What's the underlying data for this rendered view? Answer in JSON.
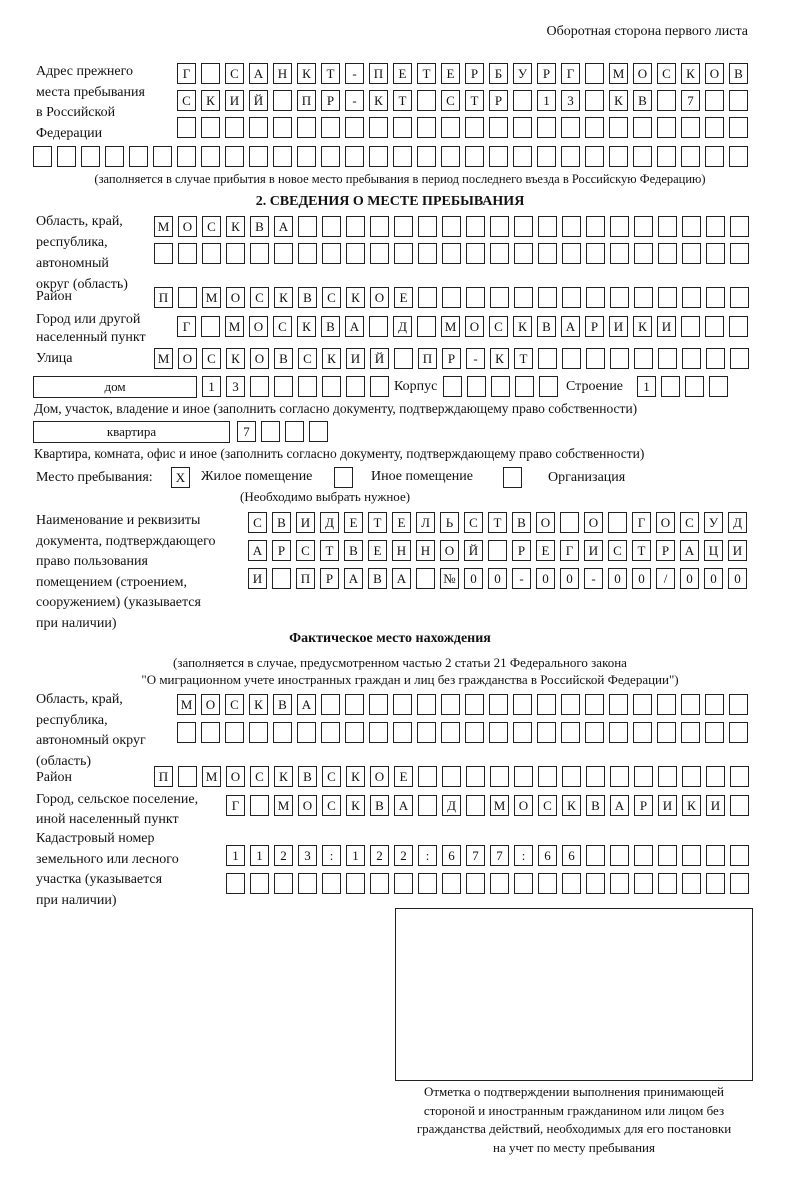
{
  "header": "Оборотная сторона первого листа",
  "prev_address": {
    "label": "Адрес прежнего\nместа пребывания\nв Российской\nФедерации",
    "rows": [
      [
        "Г",
        "",
        "С",
        "А",
        "Н",
        "К",
        "Т",
        "-",
        "П",
        "Е",
        "Т",
        "Е",
        "Р",
        "Б",
        "У",
        "Р",
        "Г",
        "",
        "М",
        "О",
        "С",
        "К",
        "О",
        "В"
      ],
      [
        "С",
        "К",
        "И",
        "Й",
        "",
        "П",
        "Р",
        "-",
        "К",
        "Т",
        "",
        "С",
        "Т",
        "Р",
        "",
        "1",
        "3",
        "",
        "К",
        "В",
        "",
        "7",
        "",
        ""
      ],
      [
        "",
        "",
        "",
        "",
        "",
        "",
        "",
        "",
        "",
        "",
        "",
        "",
        "",
        "",
        "",
        "",
        "",
        "",
        "",
        "",
        "",
        "",
        "",
        ""
      ]
    ],
    "full_row": [
      "",
      "",
      "",
      "",
      "",
      "",
      "",
      "",
      "",
      "",
      "",
      "",
      "",
      "",
      "",
      "",
      "",
      "",
      "",
      "",
      "",
      "",
      "",
      "",
      "",
      "",
      "",
      "",
      "",
      ""
    ],
    "note": "(заполняется в случае прибытия в новое место пребывания в период последнего въезда в Российскую Федерацию)"
  },
  "section2": {
    "title": "2. СВЕДЕНИЯ О МЕСТЕ ПРЕБЫВАНИЯ",
    "region_label": "Область, край,\nреспублика,\nавтономный\nокруг (область)",
    "region_rows": [
      [
        "М",
        "О",
        "С",
        "К",
        "В",
        "А",
        "",
        "",
        "",
        "",
        "",
        "",
        "",
        "",
        "",
        "",
        "",
        "",
        "",
        "",
        "",
        "",
        "",
        "",
        ""
      ],
      [
        "",
        "",
        "",
        "",
        "",
        "",
        "",
        "",
        "",
        "",
        "",
        "",
        "",
        "",
        "",
        "",
        "",
        "",
        "",
        "",
        "",
        "",
        "",
        "",
        ""
      ]
    ],
    "district_label": "Район",
    "district": [
      "П",
      "",
      "М",
      "О",
      "С",
      "К",
      "В",
      "С",
      "К",
      "О",
      "Е",
      "",
      "",
      "",
      "",
      "",
      "",
      "",
      "",
      "",
      "",
      "",
      "",
      "",
      ""
    ],
    "city_label": "Город или другой\nнаселенный пункт",
    "city": [
      "Г",
      "",
      "М",
      "О",
      "С",
      "К",
      "В",
      "А",
      "",
      "Д",
      "",
      "М",
      "О",
      "С",
      "К",
      "В",
      "А",
      "Р",
      "И",
      "К",
      "И",
      "",
      "",
      ""
    ],
    "street_label": "Улица",
    "street": [
      "М",
      "О",
      "С",
      "К",
      "О",
      "В",
      "С",
      "К",
      "И",
      "Й",
      "",
      "П",
      "Р",
      "-",
      "К",
      "Т",
      "",
      "",
      "",
      "",
      "",
      "",
      "",
      "",
      ""
    ],
    "house_type": "дом",
    "house": [
      "1",
      "3",
      "",
      "",
      "",
      "",
      "",
      ""
    ],
    "korpus_label": "Корпус",
    "korpus": [
      "",
      "",
      "",
      "",
      ""
    ],
    "building_label": "Строение",
    "building": [
      "1",
      "",
      "",
      ""
    ],
    "house_caption": "Дом, участок, владение и иное (заполнить согласно документу, подтверждающему право собственности)",
    "flat_type": "квартира",
    "flat": [
      "7",
      "",
      "",
      ""
    ],
    "flat_caption": "Квартира, комната, офис и иное (заполнить согласно документу, подтверждающему право собственности)",
    "place_label": "Место пребывания:",
    "place_options": [
      {
        "label": "Жилое помещение",
        "mark": "X"
      },
      {
        "label": "Иное помещение",
        "mark": ""
      },
      {
        "label": "Организация",
        "mark": ""
      }
    ],
    "place_note": "(Необходимо выбрать нужное)",
    "doc_label": "Наименование и реквизиты\nдокумента, подтверждающего\nправо пользования\nпомещением (строением,\nсооружением) (указывается\nпри наличии)",
    "doc_rows": [
      [
        "С",
        "В",
        "И",
        "Д",
        "Е",
        "Т",
        "Е",
        "Л",
        "Ь",
        "С",
        "Т",
        "В",
        "О",
        "",
        "О",
        "",
        "Г",
        "О",
        "С",
        "У",
        "Д"
      ],
      [
        "А",
        "Р",
        "С",
        "Т",
        "В",
        "Е",
        "Н",
        "Н",
        "О",
        "Й",
        "",
        "Р",
        "Е",
        "Г",
        "И",
        "С",
        "Т",
        "Р",
        "А",
        "Ц",
        "И"
      ],
      [
        "И",
        "",
        "П",
        "Р",
        "А",
        "В",
        "А",
        "",
        "№",
        "0",
        "0",
        "-",
        "0",
        "0",
        "-",
        "0",
        "0",
        "/",
        "0",
        "0",
        "0"
      ]
    ]
  },
  "actual": {
    "title": "Фактическое место нахождения",
    "note1": "(заполняется в случае, предусмотренном частью 2 статьи 21 Федерального закона",
    "note2": "\"О миграционном учете иностранных граждан и лиц без гражданства в Российской Федерации\")",
    "region_label": "Область, край,\nреспублика,\nавтономный округ\n(область)",
    "region_rows": [
      [
        "М",
        "О",
        "С",
        "К",
        "В",
        "А",
        "",
        "",
        "",
        "",
        "",
        "",
        "",
        "",
        "",
        "",
        "",
        "",
        "",
        "",
        "",
        "",
        "",
        ""
      ],
      [
        "",
        "",
        "",
        "",
        "",
        "",
        "",
        "",
        "",
        "",
        "",
        "",
        "",
        "",
        "",
        "",
        "",
        "",
        "",
        "",
        "",
        "",
        "",
        ""
      ]
    ],
    "district_label": "Район",
    "district": [
      "П",
      "",
      "М",
      "О",
      "С",
      "К",
      "В",
      "С",
      "К",
      "О",
      "Е",
      "",
      "",
      "",
      "",
      "",
      "",
      "",
      "",
      "",
      "",
      "",
      "",
      "",
      ""
    ],
    "city_label": "Город, сельское поселение,\nиной населенный пункт",
    "city": [
      "Г",
      "",
      "М",
      "О",
      "С",
      "К",
      "В",
      "А",
      "",
      "Д",
      "",
      "М",
      "О",
      "С",
      "К",
      "В",
      "А",
      "Р",
      "И",
      "К",
      "И",
      ""
    ],
    "cadastre_label": "Кадастровый номер\nземельного или лесного\nучастка (указывается\nпри наличии)",
    "cadastre_rows": [
      [
        "1",
        "1",
        "2",
        "3",
        ":",
        "1",
        "2",
        "2",
        ":",
        "6",
        "7",
        "7",
        ":",
        "6",
        "6",
        "",
        "",
        "",
        "",
        "",
        "",
        ""
      ],
      [
        "",
        "",
        "",
        "",
        "",
        "",
        "",
        "",
        "",
        "",
        "",
        "",
        "",
        "",
        "",
        "",
        "",
        "",
        "",
        "",
        "",
        ""
      ]
    ]
  },
  "stamp_caption": "Отметка о подтверждении выполнения принимающей\nстороной и иностранным гражданином или лицом без\nгражданства действий, необходимых для его постановки\nна учет по месту пребывания"
}
